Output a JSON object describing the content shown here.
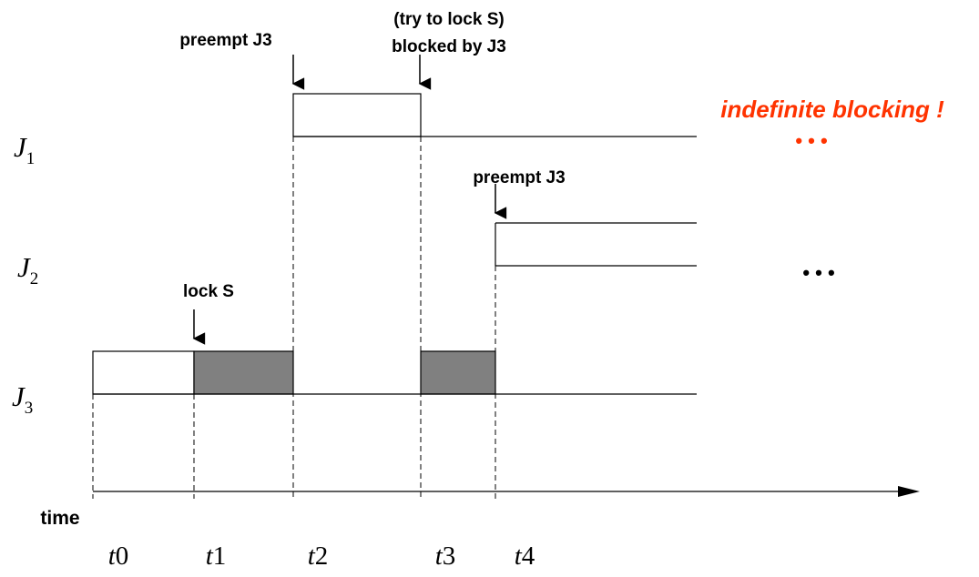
{
  "jobs": [
    {
      "name": "J",
      "sub": "1"
    },
    {
      "name": "J",
      "sub": "2"
    },
    {
      "name": "J",
      "sub": "3"
    }
  ],
  "events": {
    "preempt_j3_top": "preempt J3",
    "try_lock_line1": "(try to lock S)",
    "try_lock_line2": "blocked by J3",
    "preempt_j3_mid": "preempt J3",
    "lock_s": "lock S"
  },
  "annotation": {
    "text": "indefinite blocking !",
    "color": "#ff3300"
  },
  "ellipsis": {
    "j1": "• • •",
    "j2": "• • •"
  },
  "time_axis": {
    "label": "time",
    "ticks": [
      {
        "var": "t",
        "num": "0"
      },
      {
        "var": "t",
        "num": "1"
      },
      {
        "var": "t",
        "num": "2"
      },
      {
        "var": "t",
        "num": "3"
      },
      {
        "var": "t",
        "num": "4"
      }
    ]
  },
  "colors": {
    "critical_section_fill": "#808080",
    "line": "#000000"
  }
}
